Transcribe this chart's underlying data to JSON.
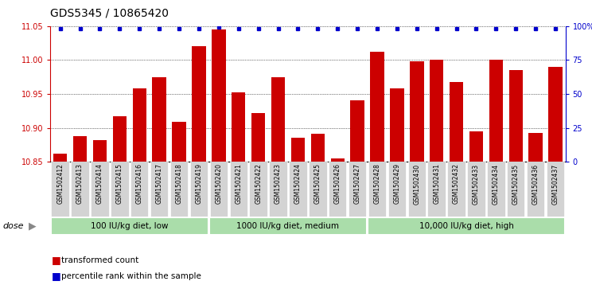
{
  "title": "GDS5345 / 10865420",
  "samples": [
    "GSM1502412",
    "GSM1502413",
    "GSM1502414",
    "GSM1502415",
    "GSM1502416",
    "GSM1502417",
    "GSM1502418",
    "GSM1502419",
    "GSM1502420",
    "GSM1502421",
    "GSM1502422",
    "GSM1502423",
    "GSM1502424",
    "GSM1502425",
    "GSM1502426",
    "GSM1502427",
    "GSM1502428",
    "GSM1502429",
    "GSM1502430",
    "GSM1502431",
    "GSM1502432",
    "GSM1502433",
    "GSM1502434",
    "GSM1502435",
    "GSM1502436",
    "GSM1502437"
  ],
  "bar_values": [
    10.862,
    10.888,
    10.882,
    10.917,
    10.958,
    10.975,
    10.909,
    11.02,
    11.045,
    10.952,
    10.922,
    10.975,
    10.886,
    10.891,
    10.855,
    10.941,
    11.012,
    10.958,
    10.998,
    11.0,
    10.967,
    10.895,
    11.0,
    10.985,
    10.893,
    10.99
  ],
  "percentile_values": [
    98,
    98,
    98,
    98,
    98,
    98,
    98,
    98,
    99,
    98,
    98,
    98,
    98,
    98,
    98,
    98,
    98,
    98,
    98,
    98,
    98,
    98,
    98,
    98,
    98,
    98
  ],
  "bar_color": "#cc0000",
  "percentile_color": "#0000cc",
  "ylim_left": [
    10.85,
    11.05
  ],
  "ylim_right": [
    0,
    100
  ],
  "yticks_left": [
    10.85,
    10.9,
    10.95,
    11.0,
    11.05
  ],
  "yticks_right": [
    0,
    25,
    50,
    75,
    100
  ],
  "ytick_labels_right": [
    "0",
    "25",
    "50",
    "75",
    "100%"
  ],
  "groups": [
    {
      "label": "100 IU/kg diet, low",
      "start": 0,
      "end": 7
    },
    {
      "label": "1000 IU/kg diet, medium",
      "start": 8,
      "end": 15
    },
    {
      "label": "10,000 IU/kg diet, high",
      "start": 16,
      "end": 25
    }
  ],
  "group_color": "#aaddaa",
  "dose_label": "dose",
  "legend_items": [
    {
      "color": "#cc0000",
      "label": "transformed count"
    },
    {
      "color": "#0000cc",
      "label": "percentile rank within the sample"
    }
  ],
  "plot_bg_color": "#ffffff",
  "tick_label_bg": "#d3d3d3",
  "title_fontsize": 10,
  "tick_fontsize": 6,
  "bar_width": 0.7
}
